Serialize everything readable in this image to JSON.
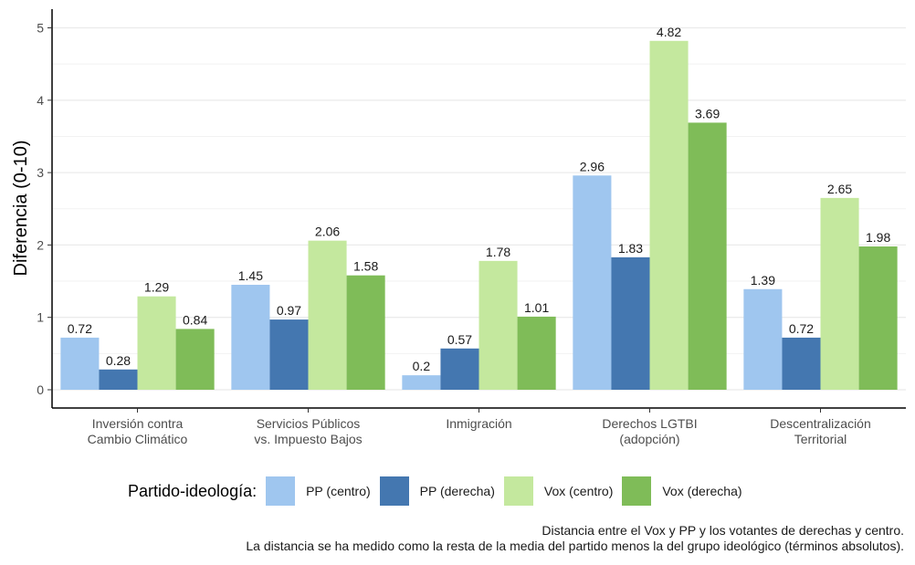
{
  "chart_data": {
    "type": "bar",
    "ylabel": "Diferencia (0-10)",
    "xlabel": "",
    "ylim": [
      0,
      5.15
    ],
    "yticks": [
      0,
      1,
      2,
      3,
      4,
      5
    ],
    "grid": true,
    "legend_position": "bottom",
    "legend_title": "Partido-ideología:",
    "categories": [
      [
        "Inversión contra",
        "Cambio Climático"
      ],
      [
        "Servicios Públicos",
        "vs. Impuesto Bajos"
      ],
      [
        "Inmigración"
      ],
      [
        "Derechos LGTBI",
        "(adopción)"
      ],
      [
        "Descentralización",
        "Territorial"
      ]
    ],
    "series": [
      {
        "name": "PP (centro)",
        "color": "#9fc6ef",
        "values": [
          0.72,
          1.45,
          0.2,
          2.96,
          1.39
        ],
        "labels": [
          "0.72",
          "1.45",
          "0.2",
          "2.96",
          "1.39"
        ]
      },
      {
        "name": "PP (derecha)",
        "color": "#4477b0",
        "values": [
          0.28,
          0.97,
          0.57,
          1.83,
          0.72
        ],
        "labels": [
          "0.28",
          "0.97",
          "0.57",
          "1.83",
          "0.72"
        ]
      },
      {
        "name": "Vox (centro)",
        "color": "#c4e89e",
        "values": [
          1.29,
          2.06,
          1.78,
          4.82,
          2.65
        ],
        "labels": [
          "1.29",
          "2.06",
          "1.78",
          "4.82",
          "2.65"
        ]
      },
      {
        "name": "Vox (derecha)",
        "color": "#7fbc58",
        "values": [
          0.84,
          1.58,
          1.01,
          3.69,
          1.98
        ],
        "labels": [
          "0.84",
          "1.58",
          "1.01",
          "3.69",
          "1.98"
        ]
      }
    ],
    "caption": [
      "Distancia entre el Vox y PP y los votantes de derechas y centro.",
      "La distancia se ha medido como la resta de la media del partido menos la del grupo ideológico (términos absolutos)."
    ]
  }
}
